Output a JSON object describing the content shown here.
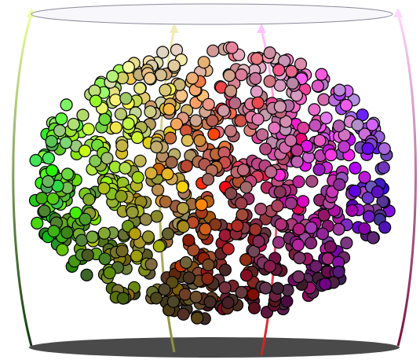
{
  "figure": {
    "background": "#ffffff",
    "top_ellipse": {
      "fill": "#f8f8fc",
      "stroke": "#8c8c9c"
    },
    "bottom_ellipse": {
      "fill": "#4a4a4a"
    },
    "dot_outline": "#000000",
    "rods": [
      {
        "name": "left-rod",
        "top_color": "#ecffa0",
        "bottom_color": "#0e3c0e",
        "arrow": "arrow-up-icon"
      },
      {
        "name": "inner-left-rod",
        "top_color": "#f0ecb4",
        "bottom_color": "#8e8e3c",
        "arrow": "arrow-up-icon"
      },
      {
        "name": "inner-right-rod",
        "top_color": "#ffc4ff",
        "bottom_color": "#d41e1e",
        "arrow": "arrow-up-icon"
      },
      {
        "name": "right-rod",
        "top_color": "#ffd6ff",
        "bottom_color": "#7a1040",
        "arrow": "arrow-up-icon"
      }
    ],
    "point_count": 900
  }
}
